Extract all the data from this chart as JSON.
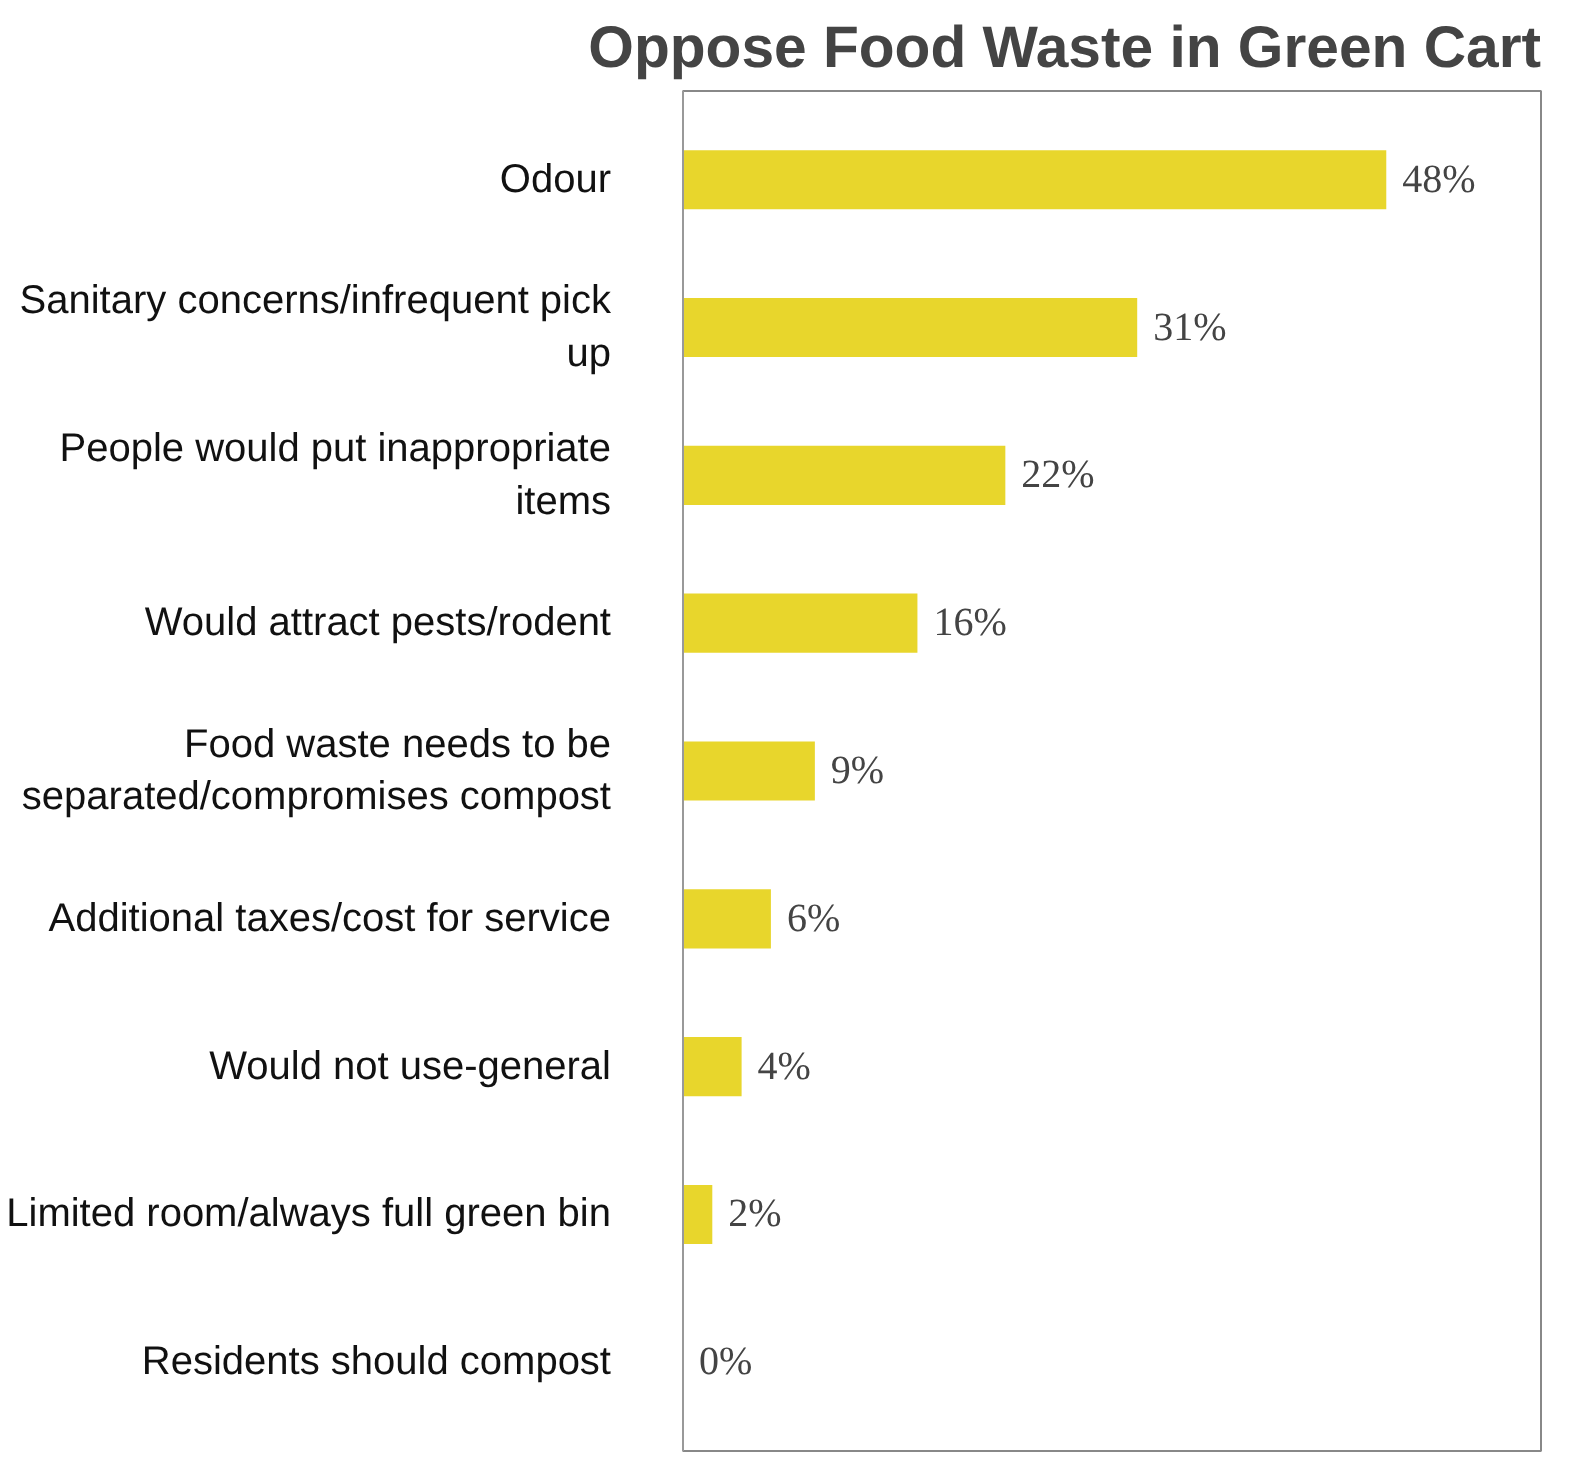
{
  "chart_data": {
    "type": "bar",
    "orientation": "horizontal",
    "title": "Oppose Food Waste in Green Cart",
    "categories": [
      "Odour",
      "Sanitary concerns/infrequent pick up",
      "People would put inappropriate items",
      "Would attract pests/rodent",
      "Food waste needs to be separated/compromises compost",
      "Additional taxes/cost for service",
      "Would not use-general",
      "Limited room/always full green bin",
      "Residents should compost"
    ],
    "values": [
      48,
      31,
      22,
      16,
      9,
      6,
      4,
      2,
      0
    ],
    "value_labels": [
      "48%",
      "31%",
      "22%",
      "16%",
      "9%",
      "6%",
      "4%",
      "2%",
      "0%"
    ],
    "color": "#e8d62c",
    "grid": false
  }
}
